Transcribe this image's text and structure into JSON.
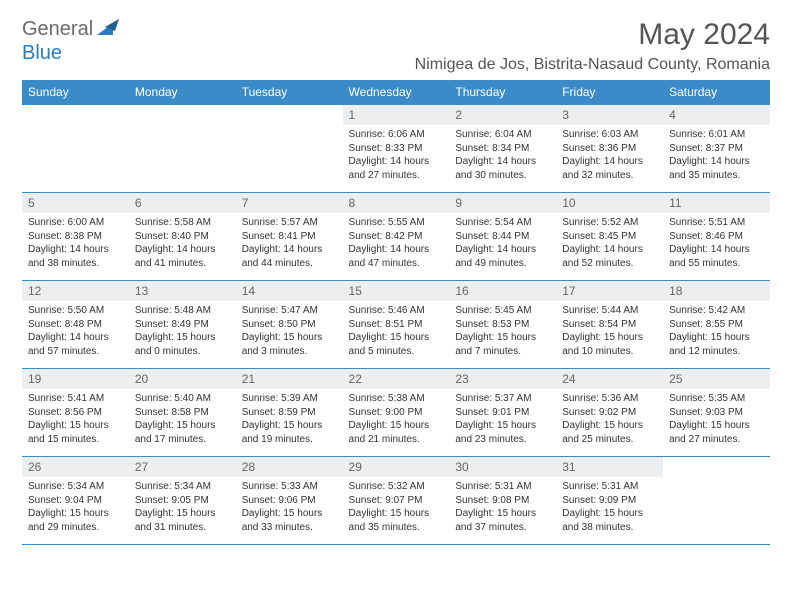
{
  "brand": {
    "part1": "General",
    "part2": "Blue"
  },
  "title": "May 2024",
  "location": "Nimigea de Jos, Bistrita-Nasaud County, Romania",
  "colors": {
    "header_bg": "#3b8bc8",
    "header_text": "#ffffff",
    "daynum_bg": "#eceef0",
    "daynum_text": "#666666",
    "body_text": "#333333",
    "title_text": "#555555",
    "divider": "#3b8bc8",
    "logo_gray": "#6b6b6b",
    "logo_blue": "#2b7bbf",
    "page_bg": "#ffffff"
  },
  "days_of_week": [
    "Sunday",
    "Monday",
    "Tuesday",
    "Wednesday",
    "Thursday",
    "Friday",
    "Saturday"
  ],
  "month_start_day_index": 3,
  "days": [
    {
      "n": 1,
      "sunrise": "6:06 AM",
      "sunset": "8:33 PM",
      "daylight": "14 hours and 27 minutes."
    },
    {
      "n": 2,
      "sunrise": "6:04 AM",
      "sunset": "8:34 PM",
      "daylight": "14 hours and 30 minutes."
    },
    {
      "n": 3,
      "sunrise": "6:03 AM",
      "sunset": "8:36 PM",
      "daylight": "14 hours and 32 minutes."
    },
    {
      "n": 4,
      "sunrise": "6:01 AM",
      "sunset": "8:37 PM",
      "daylight": "14 hours and 35 minutes."
    },
    {
      "n": 5,
      "sunrise": "6:00 AM",
      "sunset": "8:38 PM",
      "daylight": "14 hours and 38 minutes."
    },
    {
      "n": 6,
      "sunrise": "5:58 AM",
      "sunset": "8:40 PM",
      "daylight": "14 hours and 41 minutes."
    },
    {
      "n": 7,
      "sunrise": "5:57 AM",
      "sunset": "8:41 PM",
      "daylight": "14 hours and 44 minutes."
    },
    {
      "n": 8,
      "sunrise": "5:55 AM",
      "sunset": "8:42 PM",
      "daylight": "14 hours and 47 minutes."
    },
    {
      "n": 9,
      "sunrise": "5:54 AM",
      "sunset": "8:44 PM",
      "daylight": "14 hours and 49 minutes."
    },
    {
      "n": 10,
      "sunrise": "5:52 AM",
      "sunset": "8:45 PM",
      "daylight": "14 hours and 52 minutes."
    },
    {
      "n": 11,
      "sunrise": "5:51 AM",
      "sunset": "8:46 PM",
      "daylight": "14 hours and 55 minutes."
    },
    {
      "n": 12,
      "sunrise": "5:50 AM",
      "sunset": "8:48 PM",
      "daylight": "14 hours and 57 minutes."
    },
    {
      "n": 13,
      "sunrise": "5:48 AM",
      "sunset": "8:49 PM",
      "daylight": "15 hours and 0 minutes."
    },
    {
      "n": 14,
      "sunrise": "5:47 AM",
      "sunset": "8:50 PM",
      "daylight": "15 hours and 3 minutes."
    },
    {
      "n": 15,
      "sunrise": "5:46 AM",
      "sunset": "8:51 PM",
      "daylight": "15 hours and 5 minutes."
    },
    {
      "n": 16,
      "sunrise": "5:45 AM",
      "sunset": "8:53 PM",
      "daylight": "15 hours and 7 minutes."
    },
    {
      "n": 17,
      "sunrise": "5:44 AM",
      "sunset": "8:54 PM",
      "daylight": "15 hours and 10 minutes."
    },
    {
      "n": 18,
      "sunrise": "5:42 AM",
      "sunset": "8:55 PM",
      "daylight": "15 hours and 12 minutes."
    },
    {
      "n": 19,
      "sunrise": "5:41 AM",
      "sunset": "8:56 PM",
      "daylight": "15 hours and 15 minutes."
    },
    {
      "n": 20,
      "sunrise": "5:40 AM",
      "sunset": "8:58 PM",
      "daylight": "15 hours and 17 minutes."
    },
    {
      "n": 21,
      "sunrise": "5:39 AM",
      "sunset": "8:59 PM",
      "daylight": "15 hours and 19 minutes."
    },
    {
      "n": 22,
      "sunrise": "5:38 AM",
      "sunset": "9:00 PM",
      "daylight": "15 hours and 21 minutes."
    },
    {
      "n": 23,
      "sunrise": "5:37 AM",
      "sunset": "9:01 PM",
      "daylight": "15 hours and 23 minutes."
    },
    {
      "n": 24,
      "sunrise": "5:36 AM",
      "sunset": "9:02 PM",
      "daylight": "15 hours and 25 minutes."
    },
    {
      "n": 25,
      "sunrise": "5:35 AM",
      "sunset": "9:03 PM",
      "daylight": "15 hours and 27 minutes."
    },
    {
      "n": 26,
      "sunrise": "5:34 AM",
      "sunset": "9:04 PM",
      "daylight": "15 hours and 29 minutes."
    },
    {
      "n": 27,
      "sunrise": "5:34 AM",
      "sunset": "9:05 PM",
      "daylight": "15 hours and 31 minutes."
    },
    {
      "n": 28,
      "sunrise": "5:33 AM",
      "sunset": "9:06 PM",
      "daylight": "15 hours and 33 minutes."
    },
    {
      "n": 29,
      "sunrise": "5:32 AM",
      "sunset": "9:07 PM",
      "daylight": "15 hours and 35 minutes."
    },
    {
      "n": 30,
      "sunrise": "5:31 AM",
      "sunset": "9:08 PM",
      "daylight": "15 hours and 37 minutes."
    },
    {
      "n": 31,
      "sunrise": "5:31 AM",
      "sunset": "9:09 PM",
      "daylight": "15 hours and 38 minutes."
    }
  ],
  "labels": {
    "sunrise": "Sunrise:",
    "sunset": "Sunset:",
    "daylight": "Daylight:"
  }
}
